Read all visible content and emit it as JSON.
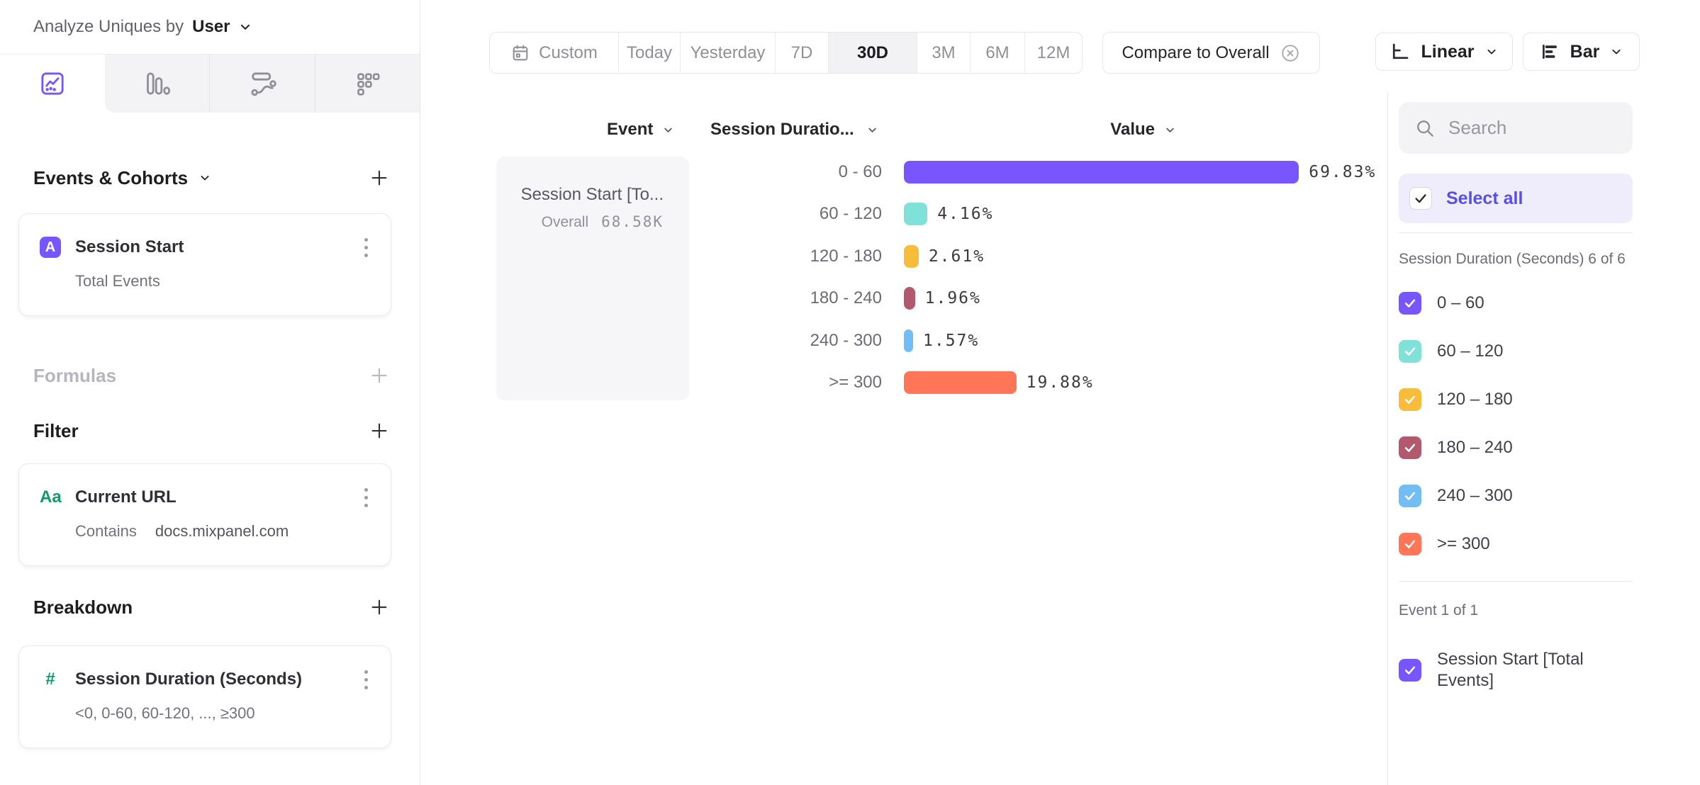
{
  "sidebar": {
    "analyze_label": "Analyze Uniques by",
    "analyze_value": "User",
    "tabs": [
      {
        "name": "insights",
        "active": true
      },
      {
        "name": "funnels",
        "active": false
      },
      {
        "name": "flows",
        "active": false
      },
      {
        "name": "retention",
        "active": false
      }
    ],
    "events_section_title": "Events & Cohorts",
    "event_card": {
      "badge": "A",
      "title": "Session Start",
      "subtitle": "Total Events"
    },
    "formulas_label": "Formulas",
    "filter_section_title": "Filter",
    "filter_card": {
      "icon": "Aa",
      "title": "Current URL",
      "operator": "Contains",
      "value": "docs.mixpanel.com"
    },
    "breakdown_section_title": "Breakdown",
    "breakdown_card": {
      "icon": "#",
      "title": "Session Duration (Seconds)",
      "subtitle": "<0, 0-60, 60-120, ..., ≥300"
    }
  },
  "toolbar": {
    "date_ranges": [
      "Custom",
      "Today",
      "Yesterday",
      "7D",
      "30D",
      "3M",
      "6M",
      "12M"
    ],
    "selected_range": "30D",
    "compare_label": "Compare to Overall",
    "scale_selector": "Linear",
    "chart_type_selector": "Bar"
  },
  "table": {
    "event_header": "Event",
    "breakdown_header": "Session Duratio...",
    "value_header": "Value",
    "event_cell": {
      "title": "Session Start [To...",
      "overall_label": "Overall",
      "overall_value": "68.58K"
    }
  },
  "chart_data": {
    "type": "bar",
    "orientation": "horizontal",
    "title": "Session Start by Session Duration (Seconds)",
    "categories": [
      "0 - 60",
      "60 - 120",
      "120 - 180",
      "180 - 240",
      "240 - 300",
      ">= 300"
    ],
    "values": [
      69.83,
      4.16,
      2.61,
      1.96,
      1.57,
      19.88
    ],
    "value_labels": [
      "69.83%",
      "4.16%",
      "2.61%",
      "1.96%",
      "1.57%",
      "19.88%"
    ],
    "colors": [
      "#7856FF",
      "#80E1D9",
      "#F8BC3B",
      "#B2596E",
      "#72BEF4",
      "#FF7557"
    ],
    "series_name": "Session Start [Total Events]",
    "overall_value": "68.58K",
    "xlim": [
      0,
      100
    ],
    "unit": "%",
    "grid": false,
    "legend_position": "right-panel"
  },
  "right_panel": {
    "search_placeholder": "Search",
    "select_all_label": "Select all",
    "breakdown_group_label": "Session Duration (Seconds) 6 of 6",
    "breakdown_items": [
      {
        "label": "0 – 60",
        "color": "#7856FF",
        "checked": true
      },
      {
        "label": "60 – 120",
        "color": "#80E1D9",
        "checked": true
      },
      {
        "label": "120 – 180",
        "color": "#F8BC3B",
        "checked": true
      },
      {
        "label": "180 – 240",
        "color": "#B2596E",
        "checked": true
      },
      {
        "label": "240 – 300",
        "color": "#72BEF4",
        "checked": true
      },
      {
        "label": ">= 300",
        "color": "#FF7557",
        "checked": true
      }
    ],
    "event_group_label": "Event 1 of 1",
    "event_items": [
      {
        "label": "Session Start [Total Events]",
        "color": "#7856FF",
        "checked": true
      }
    ]
  },
  "colors": {
    "accent_purple": "#7856FF",
    "select_all_purple": "#5A50E0",
    "panel_bg": "#F3F3F6",
    "selected_segment_bg": "#F2F2F4",
    "card_border": "#E9E9ED"
  }
}
